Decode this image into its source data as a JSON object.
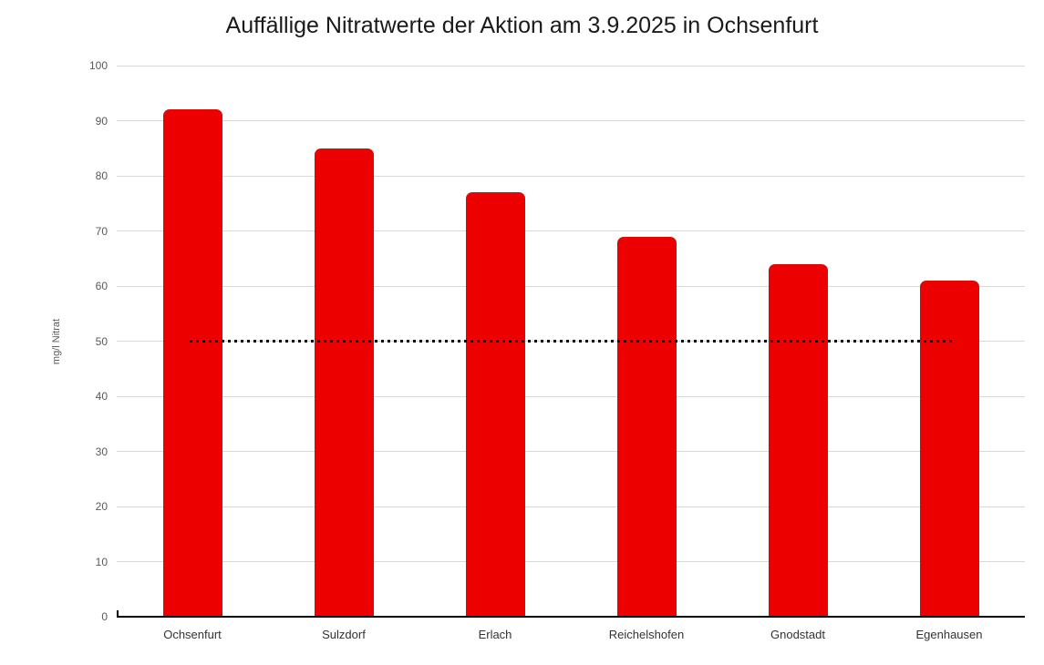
{
  "chart_data": {
    "type": "bar",
    "title": "Auffällige Nitratwerte der Aktion am 3.9.2025 in Ochsenfurt",
    "categories": [
      "Ochsenfurt",
      "Sulzdorf",
      "Erlach",
      "Reichelshofen",
      "Gnodstadt",
      "Egenhausen"
    ],
    "values": [
      92,
      85,
      77,
      69,
      64,
      61
    ],
    "xlabel": "",
    "ylabel": "mg/l Nitrat",
    "ylim": [
      0,
      100
    ],
    "ytick_step": 10,
    "grid": true,
    "legend": "none",
    "limit_line": {
      "value": 50,
      "style": "dotted",
      "color": "#000000"
    },
    "colors": {
      "bar": "#ed0000",
      "gridline": "#d9d9d9",
      "axis_line": "#000000",
      "tick_label": "#595959",
      "category_label": "#333333",
      "title": "#1a1a1a",
      "background": "#ffffff"
    }
  }
}
